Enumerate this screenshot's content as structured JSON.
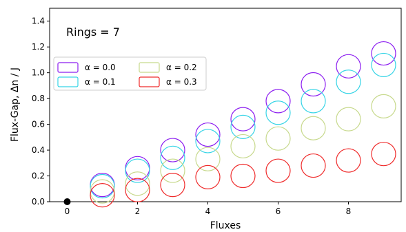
{
  "chart_data": {
    "type": "scatter",
    "xlabel": "Fluxes",
    "ylabel": "Flux-Gap, Δn / J",
    "xlim": [
      -0.5,
      9.5
    ],
    "ylim": [
      0.0,
      1.5
    ],
    "xticks": [
      0,
      2,
      4,
      6,
      8
    ],
    "xtick_labels": [
      "0",
      "2",
      "4",
      "6",
      "8"
    ],
    "yticks": [
      0.0,
      0.2,
      0.4,
      0.6,
      0.8,
      1.0,
      1.2,
      1.4
    ],
    "ytick_labels": [
      "0.0",
      "0.2",
      "0.4",
      "0.6",
      "0.8",
      "1.0",
      "1.2",
      "1.4"
    ],
    "grid": false,
    "annotation": "Rings  = 7",
    "legend": {
      "position": "upper-left",
      "columns": 2
    },
    "marker": "open ellipse",
    "origin_point": {
      "x": 0,
      "y": 0.0,
      "color": "#000000"
    },
    "series": [
      {
        "name": "α = 0.0",
        "color": "#8b1cf0",
        "x": [
          1,
          2,
          3,
          4,
          5,
          6,
          7,
          8,
          9
        ],
        "y": [
          0.13,
          0.26,
          0.4,
          0.52,
          0.64,
          0.78,
          0.91,
          1.05,
          1.15
        ]
      },
      {
        "name": "α = 0.1",
        "color": "#35d4e6",
        "x": [
          1,
          2,
          3,
          4,
          5,
          6,
          7,
          8,
          9
        ],
        "y": [
          0.12,
          0.24,
          0.34,
          0.47,
          0.58,
          0.69,
          0.78,
          0.93,
          1.06
        ]
      },
      {
        "name": "α = 0.2",
        "color": "#c7d98c",
        "x": [
          1,
          2,
          3,
          4,
          5,
          6,
          7,
          8,
          9
        ],
        "y": [
          0.08,
          0.14,
          0.24,
          0.33,
          0.43,
          0.49,
          0.57,
          0.64,
          0.74
        ]
      },
      {
        "name": "α = 0.3",
        "color": "#ef2a2a",
        "x": [
          1,
          2,
          3,
          4,
          5,
          6,
          7,
          8,
          9
        ],
        "y": [
          0.05,
          0.09,
          0.13,
          0.19,
          0.2,
          0.24,
          0.28,
          0.32,
          0.37
        ]
      }
    ]
  }
}
